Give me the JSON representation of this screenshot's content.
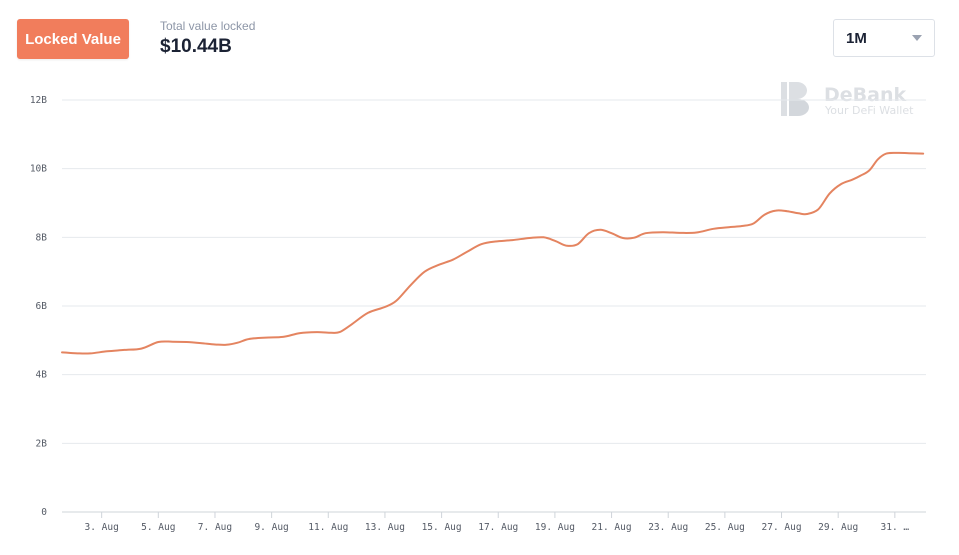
{
  "header": {
    "tab_label": "Locked Value",
    "tvl_label": "Total value locked",
    "tvl_value": "$10.44B",
    "range": "1M"
  },
  "colors": {
    "accent": "#f17d5c",
    "line": "#e48460",
    "grid": "#e6e9ed"
  },
  "watermark": {
    "name": "DeBank",
    "tagline": "Your DeFi Wallet"
  },
  "chart_data": {
    "type": "line",
    "title": "",
    "xlabel": "",
    "ylabel": "",
    "ylim": [
      0,
      12
    ],
    "y_ticks": [
      {
        "value": 0,
        "label": "0"
      },
      {
        "value": 2,
        "label": "2B"
      },
      {
        "value": 4,
        "label": "4B"
      },
      {
        "value": 6,
        "label": "6B"
      },
      {
        "value": 8,
        "label": "8B"
      },
      {
        "value": 10,
        "label": "10B"
      },
      {
        "value": 12,
        "label": "12B"
      }
    ],
    "x_range": [
      1.6,
      32.1
    ],
    "x_ticks": [
      {
        "value": 3,
        "label": "3. Aug"
      },
      {
        "value": 5,
        "label": "5. Aug"
      },
      {
        "value": 7,
        "label": "7. Aug"
      },
      {
        "value": 9,
        "label": "9. Aug"
      },
      {
        "value": 11,
        "label": "11. Aug"
      },
      {
        "value": 13,
        "label": "13. Aug"
      },
      {
        "value": 15,
        "label": "15. Aug"
      },
      {
        "value": 17,
        "label": "17. Aug"
      },
      {
        "value": 19,
        "label": "19. Aug"
      },
      {
        "value": 21,
        "label": "21. Aug"
      },
      {
        "value": 23,
        "label": "23. Aug"
      },
      {
        "value": 25,
        "label": "25. Aug"
      },
      {
        "value": 27,
        "label": "27. Aug"
      },
      {
        "value": 29,
        "label": "29. Aug"
      },
      {
        "value": 31,
        "label": "31. …"
      }
    ],
    "grid": true,
    "legend": "none",
    "series": [
      {
        "x": [
          1.6,
          2.2,
          2.6,
          3.2,
          3.8,
          4.4,
          5.0,
          5.5,
          6.0,
          6.5,
          7.0,
          7.4,
          7.8,
          8.2,
          8.8,
          9.4,
          10.0,
          10.6,
          11.1,
          11.4,
          11.8,
          12.4,
          13.0,
          13.4,
          13.9,
          14.4,
          14.9,
          15.4,
          15.9,
          16.4,
          16.9,
          17.5,
          18.1,
          18.6,
          19.0,
          19.4,
          19.8,
          20.2,
          20.6,
          21.0,
          21.4,
          21.8,
          22.2,
          22.8,
          23.4,
          24.0,
          24.6,
          25.2,
          25.6,
          26.0,
          26.4,
          26.8,
          27.2,
          27.6,
          27.9,
          28.3,
          28.7,
          29.1,
          29.5,
          29.8,
          30.1,
          30.4,
          30.7,
          31.1,
          31.5,
          32.0
        ],
        "values": [
          4.65,
          4.62,
          4.62,
          4.68,
          4.72,
          4.76,
          4.95,
          4.96,
          4.95,
          4.92,
          4.88,
          4.87,
          4.93,
          5.04,
          5.08,
          5.1,
          5.21,
          5.24,
          5.22,
          5.24,
          5.45,
          5.8,
          5.97,
          6.15,
          6.6,
          7.0,
          7.2,
          7.35,
          7.58,
          7.8,
          7.88,
          7.92,
          7.98,
          8.0,
          7.9,
          7.76,
          7.8,
          8.12,
          8.22,
          8.12,
          7.98,
          7.99,
          8.12,
          8.15,
          8.13,
          8.14,
          8.25,
          8.3,
          8.33,
          8.4,
          8.66,
          8.78,
          8.76,
          8.7,
          8.68,
          8.82,
          9.28,
          9.55,
          9.68,
          9.8,
          9.95,
          10.27,
          10.44,
          10.46,
          10.45,
          10.44
        ]
      }
    ]
  }
}
